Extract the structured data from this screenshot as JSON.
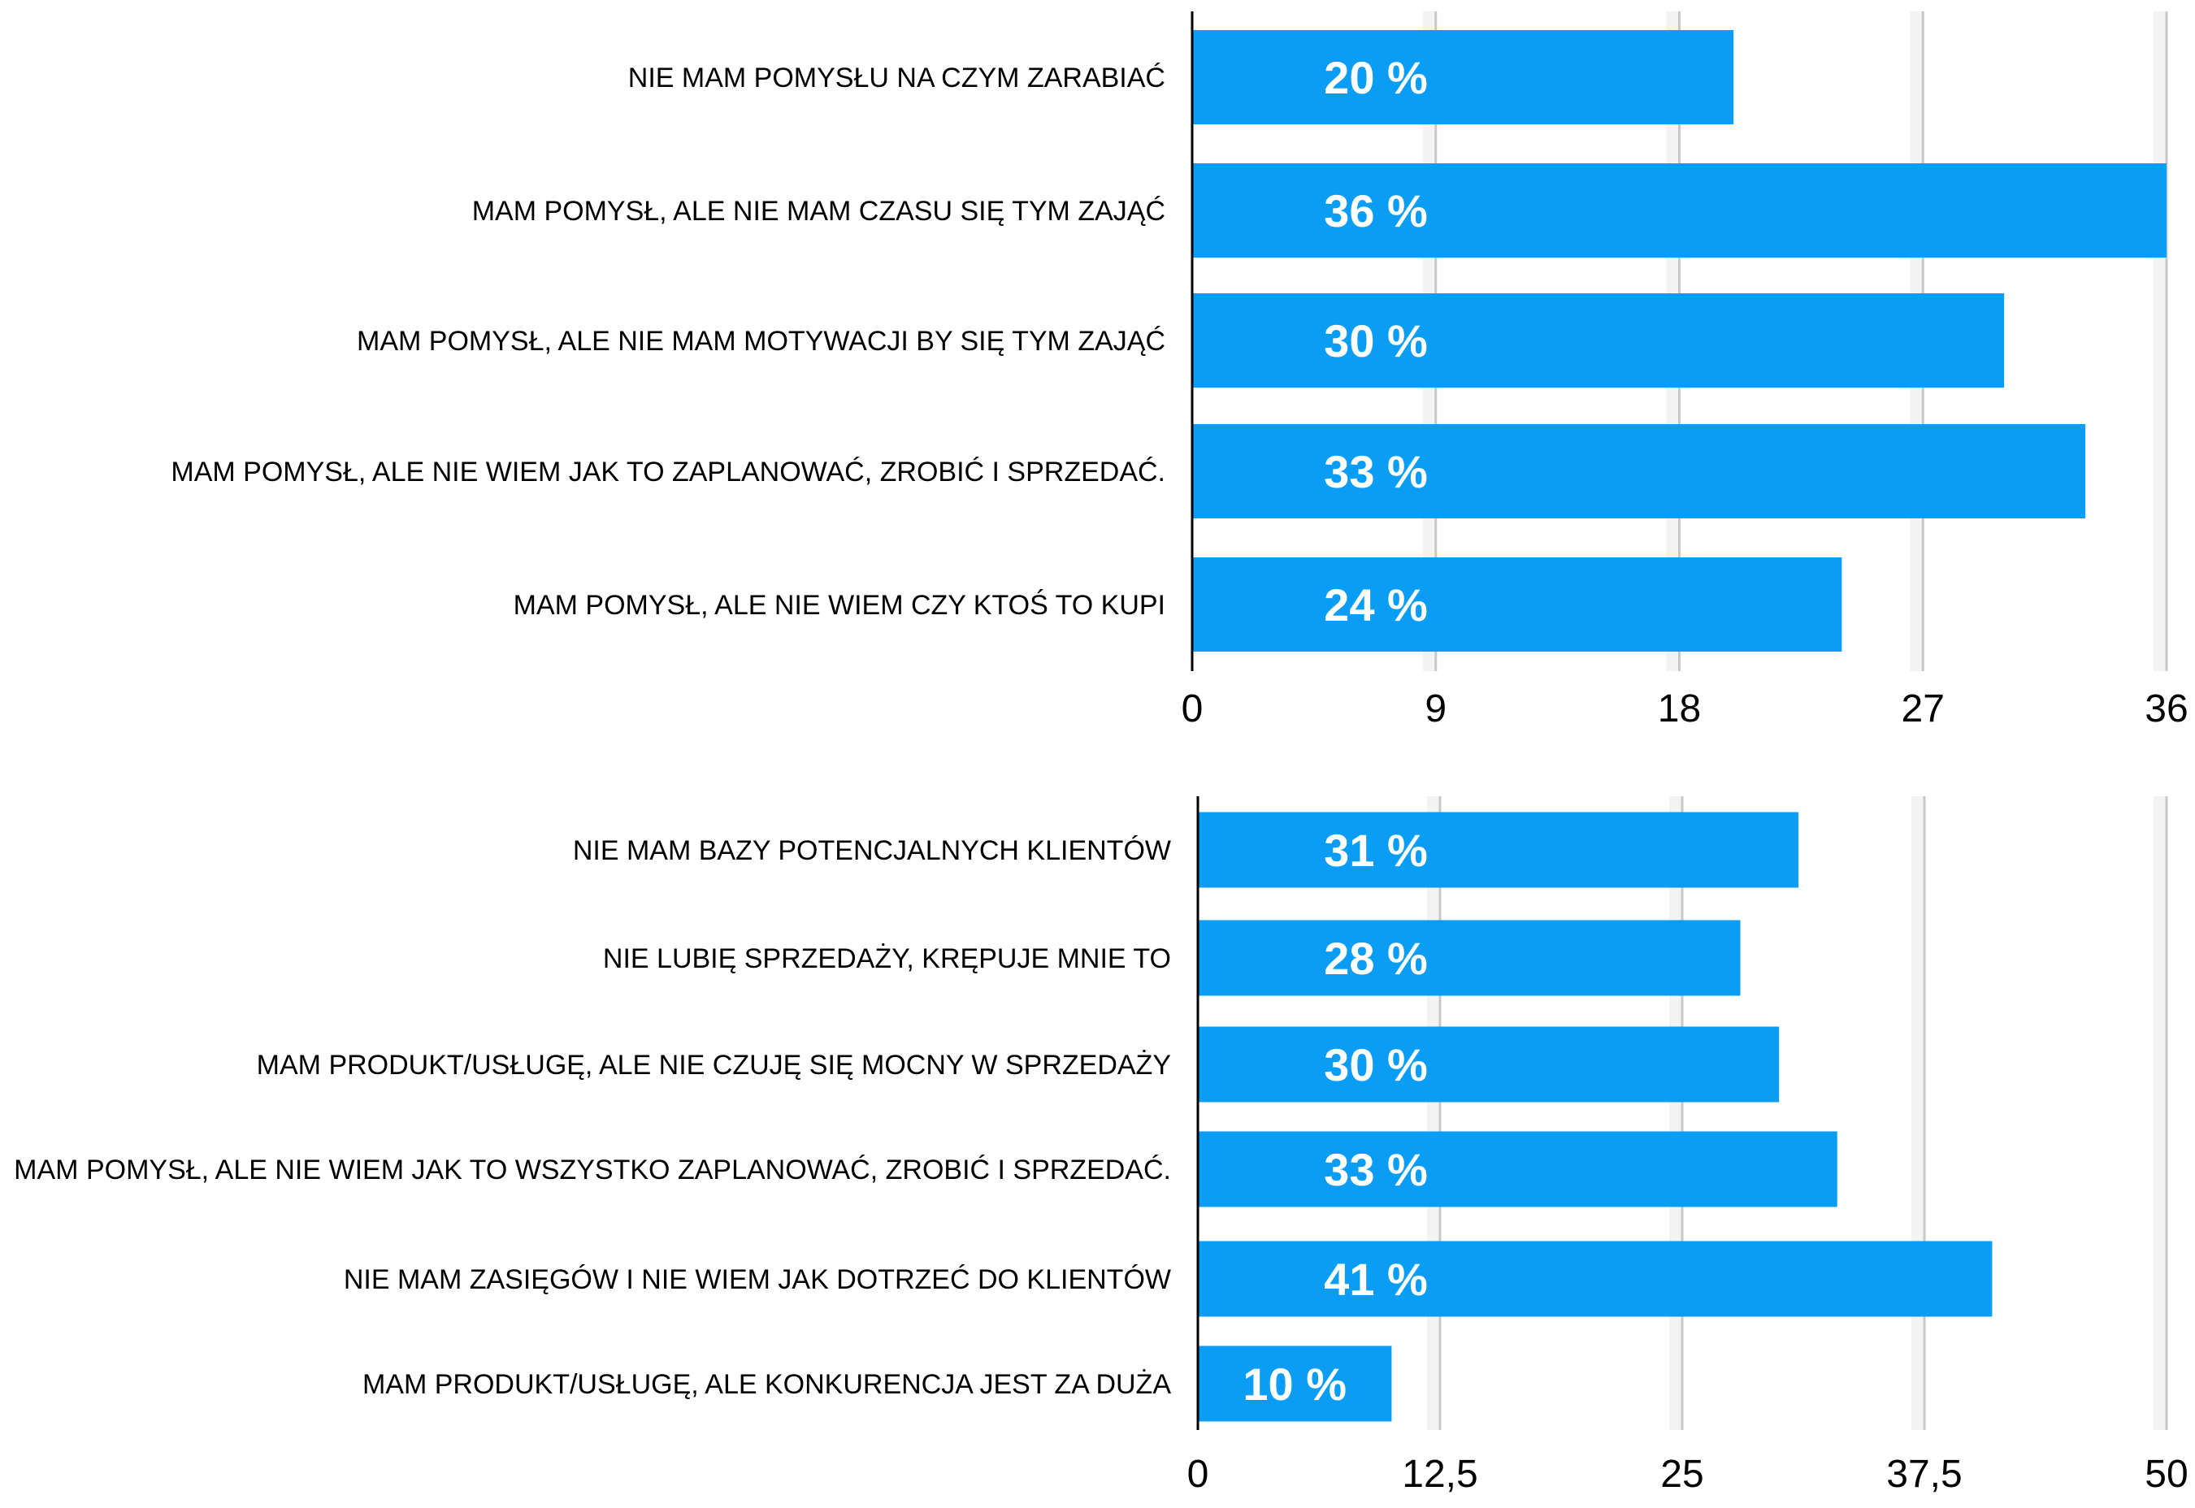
{
  "chart_data": [
    {
      "type": "bar",
      "orientation": "horizontal",
      "categories": [
        "NIE MAM POMYSŁU  NA CZYM ZARABIAĆ",
        "MAM POMYSŁ, ALE NIE MAM CZASU SIĘ TYM ZAJĄĆ",
        "MAM POMYSŁ, ALE NIE MAM MOTYWACJI BY SIĘ TYM ZAJĄĆ",
        "MAM POMYSŁ, ALE NIE WIEM JAK TO ZAPLANOWAĆ, ZROBIĆ I SPRZEDAĆ.",
        "MAM POMYSŁ, ALE NIE WIEM CZY KTOŚ TO KUPI"
      ],
      "values": [
        20,
        36,
        30,
        33,
        24
      ],
      "value_labels": [
        "20 %",
        "36 %",
        "30 %",
        "33 %",
        "24 %"
      ],
      "xlim": [
        0,
        36
      ],
      "ticks": [
        0,
        9,
        18,
        27,
        36
      ],
      "tick_labels": [
        "0",
        "9",
        "18",
        "27",
        "36"
      ],
      "grid": true,
      "legend": "none"
    },
    {
      "type": "bar",
      "orientation": "horizontal",
      "categories": [
        "NIE MAM BAZY POTENCJALNYCH KLIENTÓW",
        "NIE LUBIĘ SPRZEDAŻY, KRĘPUJE MNIE TO",
        "MAM PRODUKT/USŁUGĘ, ALE NIE CZUJĘ SIĘ MOCNY W SPRZEDAŻY",
        "MAM POMYSŁ, ALE NIE WIEM JAK TO WSZYSTKO ZAPLANOWAĆ, ZROBIĆ I SPRZEDAĆ.",
        "NIE MAM ZASIĘGÓW I NIE WIEM JAK DOTRZEĆ DO KLIENTÓW",
        "MAM PRODUKT/USŁUGĘ, ALE KONKURENCJA JEST ZA DUŻA"
      ],
      "values": [
        31,
        28,
        30,
        33,
        41,
        10
      ],
      "value_labels": [
        "31 %",
        "28 %",
        "30 %",
        "33 %",
        "41 %",
        "10 %"
      ],
      "xlim": [
        0,
        50
      ],
      "ticks": [
        0,
        12.5,
        25,
        37.5,
        50
      ],
      "tick_labels": [
        "0",
        "12,5",
        "25",
        "37,5",
        "50"
      ],
      "grid": true,
      "legend": "none"
    }
  ],
  "colors": {
    "bar": "#0a9df5",
    "value_text": "#ffffff",
    "axis": "#000000",
    "grid": "#c8c8c8",
    "text": "#000000"
  }
}
